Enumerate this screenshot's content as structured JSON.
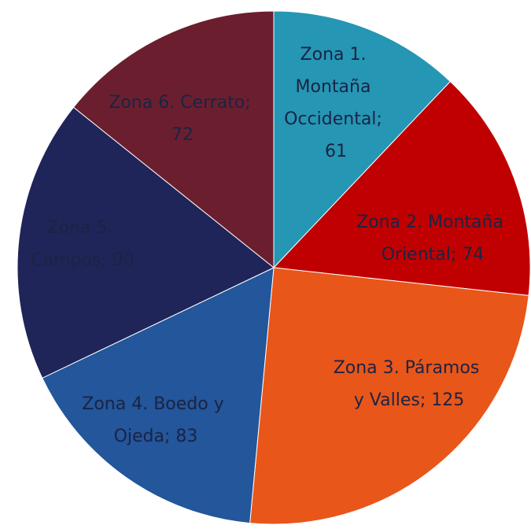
{
  "chart_data": {
    "type": "pie",
    "values": [
      61,
      74,
      125,
      83,
      90,
      72
    ],
    "value_labels": [
      "Zona 1. Montaña Occidental; 61",
      "Zona 2. Montaña Oriental; 74",
      "Zona 3. Páramos y Valles; 125",
      "Zona 4. Boedo y Ojeda; 83",
      "Zona 5. Campos; 90",
      "Zona 6. Cerrato; 72"
    ],
    "colors": [
      "#2596b4",
      "#c00000",
      "#e8561a",
      "#23569a",
      "#1f2559",
      "#6b1f2e"
    ]
  }
}
